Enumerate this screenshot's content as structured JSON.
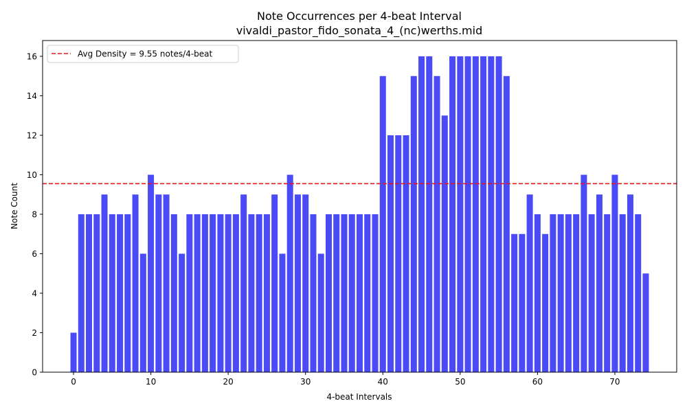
{
  "chart_data": {
    "type": "bar",
    "title": "Note Occurrences per 4-beat Interval",
    "subtitle": "vivaldi_pastor_fido_sonata_4_(nc)werths.mid",
    "xlabel": "4-beat Intervals",
    "ylabel": "Note Count",
    "xlim": [
      -4.0,
      78.0
    ],
    "ylim": [
      0,
      16.8
    ],
    "xticks": [
      0,
      10,
      20,
      30,
      40,
      50,
      60,
      70
    ],
    "yticks": [
      0,
      2,
      4,
      6,
      8,
      10,
      12,
      14,
      16
    ],
    "grid": false,
    "legend_position": "top-left",
    "bar_color": "#4a4af7",
    "reference_line": {
      "label": "Avg Density = 9.55 notes/4-beat",
      "value": 9.55,
      "color": "#e8141a",
      "style": "dashed"
    },
    "x": [
      0,
      1,
      2,
      3,
      4,
      5,
      6,
      7,
      8,
      9,
      10,
      11,
      12,
      13,
      14,
      15,
      16,
      17,
      18,
      19,
      20,
      21,
      22,
      23,
      24,
      25,
      26,
      27,
      28,
      29,
      30,
      31,
      32,
      33,
      34,
      35,
      36,
      37,
      38,
      39,
      40,
      41,
      42,
      43,
      44,
      45,
      46,
      47,
      48,
      49,
      50,
      51,
      52,
      53,
      54,
      55,
      56,
      57,
      58,
      59,
      60,
      61,
      62,
      63,
      64,
      65,
      66,
      67,
      68,
      69,
      70,
      71,
      72,
      73,
      74
    ],
    "values": [
      2,
      8,
      8,
      8,
      9,
      8,
      8,
      8,
      9,
      6,
      10,
      9,
      9,
      8,
      6,
      8,
      8,
      8,
      8,
      8,
      8,
      8,
      9,
      8,
      8,
      8,
      9,
      6,
      10,
      9,
      9,
      8,
      6,
      8,
      8,
      8,
      8,
      8,
      8,
      8,
      15,
      12,
      12,
      12,
      15,
      16,
      16,
      15,
      13,
      16,
      16,
      16,
      16,
      16,
      16,
      16,
      15,
      7,
      7,
      9,
      8,
      7,
      8,
      8,
      8,
      8,
      10,
      8,
      9,
      8,
      10,
      8,
      9,
      8,
      5
    ]
  }
}
